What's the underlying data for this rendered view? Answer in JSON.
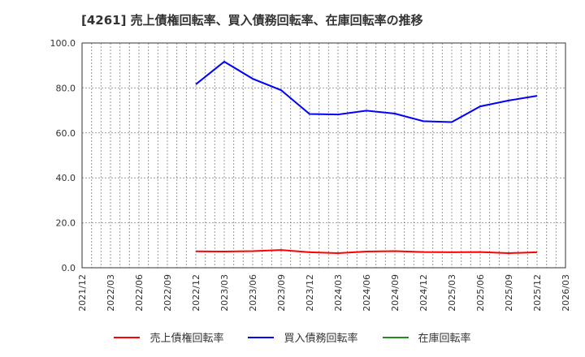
{
  "title": "[4261]  売上債権回転率、買入債務回転率、在庫回転率の推移",
  "chart_data": {
    "type": "line",
    "title": "[4261]  売上債権回転率、買入債務回転率、在庫回転率の推移",
    "xlabel": "",
    "ylabel": "",
    "ylim": [
      0,
      100
    ],
    "yticks": [
      "0.0",
      "20.0",
      "40.0",
      "60.0",
      "80.0",
      "100.0"
    ],
    "x_ticks": [
      "2021/12",
      "2022/03",
      "2022/06",
      "2022/09",
      "2022/12",
      "2023/03",
      "2023/06",
      "2023/09",
      "2023/12",
      "2024/03",
      "2024/06",
      "2024/09",
      "2024/12",
      "2025/03",
      "2025/06",
      "2025/09",
      "2025/12",
      "2026/03"
    ],
    "x": [
      "2022/12",
      "2023/03",
      "2023/06",
      "2023/09",
      "2023/12",
      "2024/03",
      "2024/06",
      "2024/09",
      "2024/12",
      "2025/03",
      "2025/06",
      "2025/09",
      "2025/12"
    ],
    "grid": true,
    "legend_position": "bottom",
    "series": [
      {
        "name": "売上債権回転率",
        "color": "#ff0000",
        "values": [
          7.3,
          7.2,
          7.4,
          7.9,
          6.9,
          6.5,
          7.2,
          7.4,
          7.0,
          6.9,
          7.0,
          6.5,
          6.9
        ]
      },
      {
        "name": "買入債務回転率",
        "color": "#0000ff",
        "values": [
          81.6,
          91.7,
          84.1,
          79.0,
          68.4,
          68.2,
          69.9,
          68.6,
          65.2,
          64.8,
          71.8,
          74.4,
          76.5
        ]
      },
      {
        "name": "在庫回転率",
        "color": "#228b22",
        "values": []
      }
    ]
  },
  "legend": [
    {
      "label": "売上債権回転率",
      "color": "#ff0000"
    },
    {
      "label": "買入債務回転率",
      "color": "#0000ff"
    },
    {
      "label": "在庫回転率",
      "color": "#228b22"
    }
  ]
}
